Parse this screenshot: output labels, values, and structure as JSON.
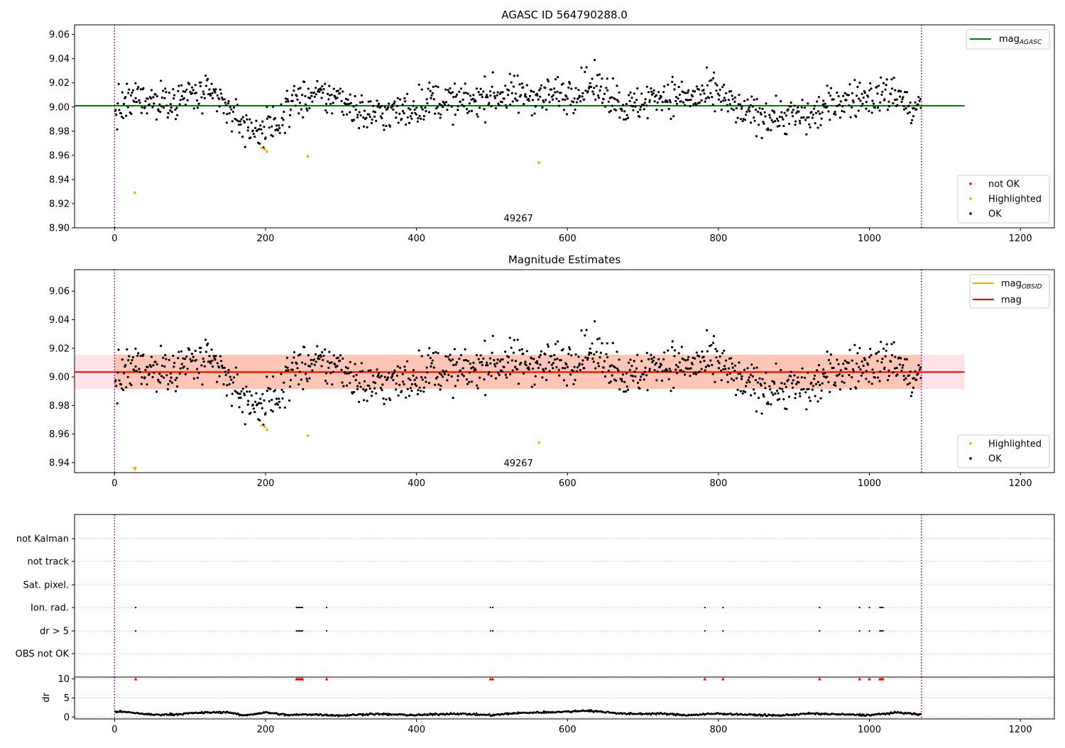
{
  "chart_data": [
    {
      "type": "scatter",
      "title": "AGASC ID 564790288.0",
      "xlim": [
        -53,
        1245
      ],
      "ylim": [
        8.9,
        9.068
      ],
      "x_ticks": [
        0,
        200,
        400,
        600,
        800,
        1000,
        1200
      ],
      "y_ticks": [
        8.9,
        8.92,
        8.94,
        8.96,
        8.98,
        9.0,
        9.02,
        9.04,
        9.06
      ],
      "vlines": [
        0,
        1069
      ],
      "annotation": "49267",
      "reference_line": {
        "name": "mag",
        "subscript": "AGASC",
        "value": 9.001,
        "x_range": [
          -53,
          1126
        ],
        "color": "#008000"
      },
      "legend_lines": [
        {
          "label": "mag",
          "subscript": "AGASC",
          "color": "#008000"
        }
      ],
      "legend_points": [
        {
          "label": "not OK",
          "color": "#ff0000"
        },
        {
          "label": "Highlighted",
          "color": "#ffa500"
        },
        {
          "label": "OK",
          "color": "#000000"
        }
      ],
      "series": [
        {
          "name": "Highlighted",
          "color": "#ffa500",
          "x": [
            27,
            195,
            199,
            202,
            256,
            562
          ],
          "y": [
            8.929,
            8.966,
            8.965,
            8.963,
            8.959,
            8.954
          ]
        }
      ],
      "ok_profile": {
        "x": [
          0,
          30,
          60,
          100,
          135,
          155,
          175,
          200,
          215,
          235,
          260,
          300,
          330,
          380,
          420,
          460,
          500,
          560,
          600,
          630,
          660,
          680,
          720,
          760,
          800,
          830,
          870,
          920,
          960,
          1000,
          1040,
          1055,
          1069
        ],
        "y": [
          8.996,
          9.008,
          9.004,
          9.01,
          9.008,
          8.995,
          8.983,
          8.98,
          8.987,
          9.005,
          9.008,
          9.008,
          8.994,
          8.996,
          9.006,
          9.003,
          9.01,
          9.01,
          9.011,
          9.018,
          9.01,
          8.998,
          9.01,
          9.008,
          9.01,
          8.995,
          8.993,
          8.992,
          9.005,
          9.008,
          9.012,
          8.995,
          9.002
        ],
        "spread": 0.009,
        "count": 1069,
        "color": "#000000"
      }
    },
    {
      "type": "scatter",
      "title": "Magnitude Estimates",
      "xlim": [
        -53,
        1245
      ],
      "ylim": [
        8.933,
        9.075
      ],
      "x_ticks": [
        0,
        200,
        400,
        600,
        800,
        1000,
        1200
      ],
      "y_ticks": [
        8.94,
        8.96,
        8.98,
        9.0,
        9.02,
        9.04,
        9.06
      ],
      "vlines": [
        0,
        1069
      ],
      "annotation": "49267",
      "reference_lines": [
        {
          "name": "mag",
          "subscript": "OBSID",
          "value": 9.0032,
          "x_range": [
            0,
            1069
          ],
          "color": "#ffa500"
        },
        {
          "name": "mag",
          "value": 9.0034,
          "x_range": [
            -53,
            1126
          ],
          "color": "#ff0000"
        }
      ],
      "bands": [
        {
          "range": [
            8.9915,
            9.0155
          ],
          "x_range": [
            -53,
            1126
          ],
          "color": "#ffc0cb"
        },
        {
          "range": [
            8.9915,
            9.0155
          ],
          "x_range": [
            0,
            1069
          ],
          "color": "#ffa07a"
        }
      ],
      "legend_lines": [
        {
          "label": "mag",
          "subscript": "OBSID",
          "color": "#ffa500"
        },
        {
          "label": "mag",
          "color": "#ff0000"
        }
      ],
      "legend_points": [
        {
          "label": "Highlighted",
          "color": "#ffa500"
        },
        {
          "label": "OK",
          "color": "#000000"
        }
      ],
      "series": [
        {
          "name": "Highlighted",
          "color": "#ffa500",
          "x": [
            195,
            199,
            202,
            256,
            562
          ],
          "y": [
            8.966,
            8.965,
            8.963,
            8.959,
            8.954
          ]
        }
      ],
      "offscale_markers": [
        {
          "x": 27,
          "y": 8.934,
          "color": "#ffa500"
        }
      ]
    },
    {
      "type": "scatter",
      "title": "",
      "xlim": [
        -53,
        1245
      ],
      "categories": [
        "not Kalman",
        "not track",
        "Sat. pixel.",
        "Ion. rad.",
        "dr > 5",
        "OBS not OK"
      ],
      "vlines": [
        0,
        1069
      ],
      "flag_points": {
        "Ion. rad.": [
          28,
          241,
          243,
          245,
          247,
          249,
          281,
          498,
          501,
          782,
          806,
          934,
          987,
          1000,
          1014,
          1016,
          1018
        ],
        "dr > 5": [
          28,
          241,
          243,
          245,
          247,
          249,
          281,
          498,
          501,
          782,
          806,
          934,
          987,
          1000,
          1014,
          1016,
          1018
        ]
      }
    },
    {
      "type": "scatter",
      "title": "",
      "ylabel": "dr",
      "xlim": [
        -53,
        1245
      ],
      "ylim": [
        -0.5,
        10.5
      ],
      "x_ticks": [
        0,
        200,
        400,
        600,
        800,
        1000,
        1200
      ],
      "y_ticks": [
        0,
        5,
        10
      ],
      "vlines": [
        0,
        1069
      ],
      "capped_points": {
        "value": 10,
        "color": "#ff0000",
        "x": [
          28,
          241,
          243,
          245,
          247,
          249,
          281,
          498,
          501,
          782,
          806,
          934,
          987,
          1000,
          1014,
          1016,
          1018
        ]
      },
      "dr_profile": {
        "x": [
          0,
          20,
          50,
          80,
          110,
          130,
          150,
          170,
          200,
          230,
          260,
          300,
          340,
          400,
          450,
          500,
          530,
          560,
          600,
          625,
          650,
          680,
          720,
          760,
          800,
          840,
          880,
          920,
          960,
          1000,
          1040,
          1069
        ],
        "y": [
          1.5,
          1.2,
          0.6,
          0.7,
          1.1,
          1.2,
          1.3,
          0.4,
          1.2,
          0.5,
          0.7,
          0.4,
          0.8,
          0.5,
          0.9,
          0.5,
          1.0,
          1.2,
          1.4,
          1.7,
          1.3,
          0.8,
          0.9,
          0.5,
          0.9,
          0.6,
          0.4,
          0.9,
          0.7,
          0.5,
          1.2,
          0.6
        ],
        "count": 1069,
        "color": "#000000"
      }
    }
  ]
}
